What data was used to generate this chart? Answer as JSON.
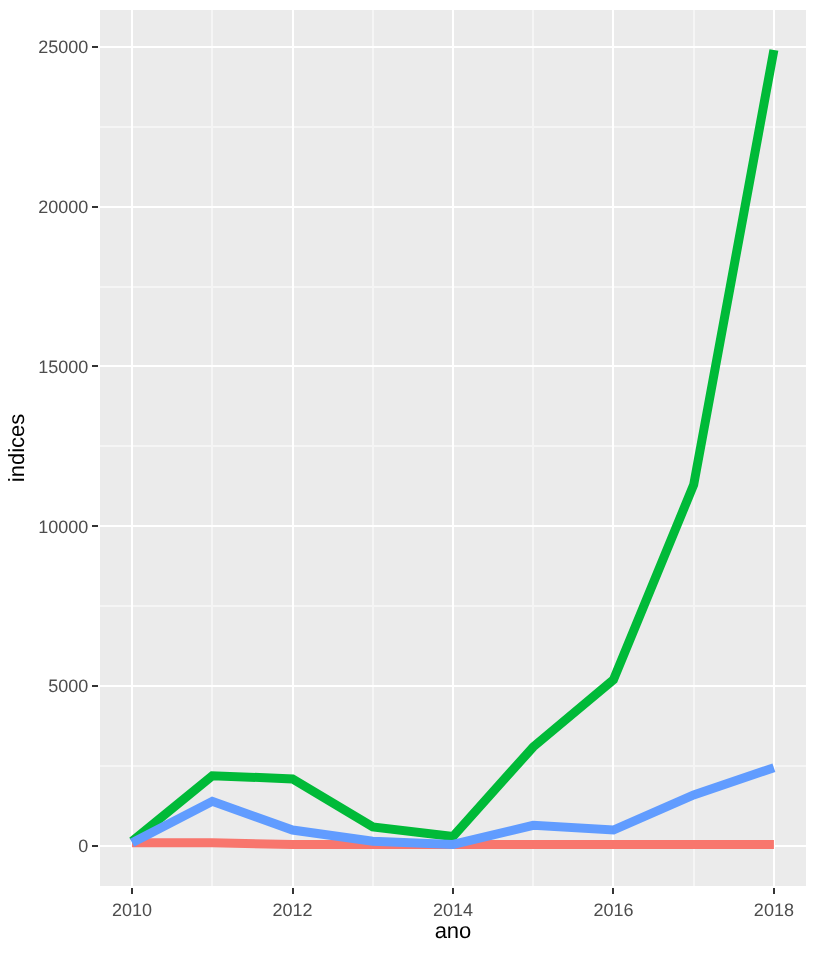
{
  "chart_data": {
    "type": "line",
    "xlabel": "ano",
    "ylabel": "indices",
    "x": [
      2010,
      2011,
      2012,
      2013,
      2014,
      2015,
      2016,
      2017,
      2018
    ],
    "series": [
      {
        "color": "#f8766d",
        "values": [
          100,
          100,
          50,
          50,
          50,
          50,
          50,
          50,
          50
        ]
      },
      {
        "color": "#00ba38",
        "values": [
          150,
          2200,
          2100,
          600,
          300,
          3100,
          5200,
          11300,
          24900
        ]
      },
      {
        "color": "#619cff",
        "values": [
          100,
          1400,
          500,
          150,
          50,
          650,
          500,
          1600,
          2450
        ]
      }
    ],
    "xlim": [
      2009.6,
      2018.4
    ],
    "xticks": [
      2010,
      2012,
      2014,
      2016,
      2018
    ],
    "ylim": [
      -1250,
      26150
    ],
    "yticks": [
      0,
      5000,
      10000,
      15000,
      20000,
      25000
    ],
    "grid": true,
    "marker": "none",
    "line_style": "solid"
  }
}
